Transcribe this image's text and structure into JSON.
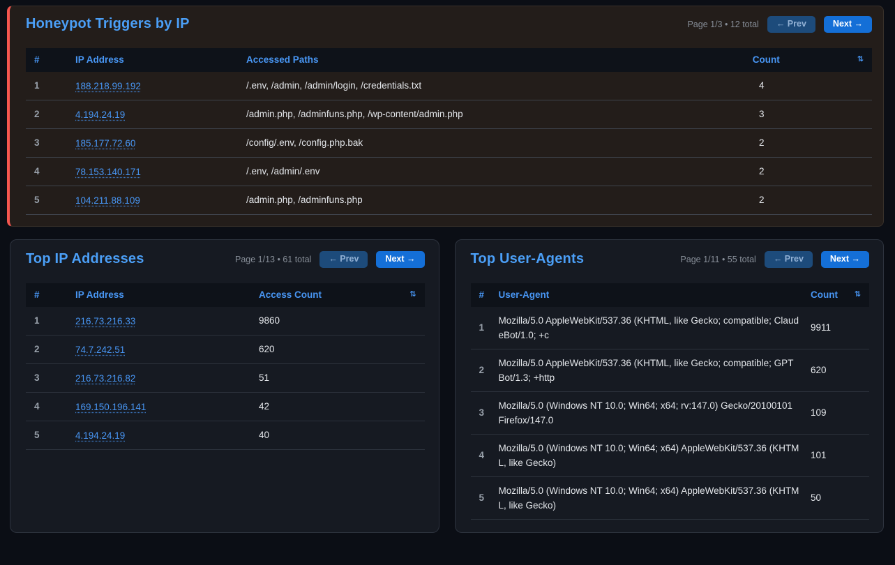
{
  "labels": {
    "prev": "← Prev",
    "next": "Next →",
    "sort_icon": "⇅"
  },
  "colors": {
    "accent_red": "#f4564f",
    "title_blue": "#4b9ff7",
    "link_blue": "#4896f4",
    "next_button_blue": "#146fd7",
    "prev_button_blue": "#1d4b7b"
  },
  "honeypot": {
    "title": "Honeypot Triggers by IP",
    "page_info": "Page 1/3 • 12 total",
    "columns": {
      "num": "#",
      "ip": "IP Address",
      "paths": "Accessed Paths",
      "count": "Count"
    },
    "rows": [
      {
        "num": "1",
        "ip": "188.218.99.192",
        "paths": "/.env, /admin, /admin/login, /credentials.txt",
        "count": "4"
      },
      {
        "num": "2",
        "ip": "4.194.24.19",
        "paths": "/admin.php, /adminfuns.php, /wp-content/admin.php",
        "count": "3"
      },
      {
        "num": "3",
        "ip": "185.177.72.60",
        "paths": "/config/.env, /config.php.bak",
        "count": "2"
      },
      {
        "num": "4",
        "ip": "78.153.140.171",
        "paths": "/.env, /admin/.env",
        "count": "2"
      },
      {
        "num": "5",
        "ip": "104.211.88.109",
        "paths": "/admin.php, /adminfuns.php",
        "count": "2"
      }
    ]
  },
  "top_ips": {
    "title": "Top IP Addresses",
    "page_info": "Page 1/13 • 61 total",
    "columns": {
      "num": "#",
      "ip": "IP Address",
      "count": "Access Count"
    },
    "rows": [
      {
        "num": "1",
        "ip": "216.73.216.33",
        "count": "9860"
      },
      {
        "num": "2",
        "ip": "74.7.242.51",
        "count": "620"
      },
      {
        "num": "3",
        "ip": "216.73.216.82",
        "count": "51"
      },
      {
        "num": "4",
        "ip": "169.150.196.141",
        "count": "42"
      },
      {
        "num": "5",
        "ip": "4.194.24.19",
        "count": "40"
      }
    ]
  },
  "user_agents": {
    "title": "Top User-Agents",
    "page_info": "Page 1/11 • 55 total",
    "columns": {
      "num": "#",
      "ua": "User-Agent",
      "count": "Count"
    },
    "rows": [
      {
        "num": "1",
        "ua": "Mozilla/5.0 AppleWebKit/537.36 (KHTML, like Gecko; compatible; ClaudeBot/1.0; +c",
        "count": "9911"
      },
      {
        "num": "2",
        "ua": "Mozilla/5.0 AppleWebKit/537.36 (KHTML, like Gecko; compatible; GPTBot/1.3; +http",
        "count": "620"
      },
      {
        "num": "3",
        "ua": "Mozilla/5.0 (Windows NT 10.0; Win64; x64; rv:147.0) Gecko/20100101 Firefox/147.0",
        "count": "109"
      },
      {
        "num": "4",
        "ua": "Mozilla/5.0 (Windows NT 10.0; Win64; x64) AppleWebKit/537.36 (KHTML, like Gecko)",
        "count": "101"
      },
      {
        "num": "5",
        "ua": "Mozilla/5.0 (Windows NT 10.0; Win64; x64) AppleWebKit/537.36 (KHTML, like Gecko)",
        "count": "50"
      }
    ]
  }
}
